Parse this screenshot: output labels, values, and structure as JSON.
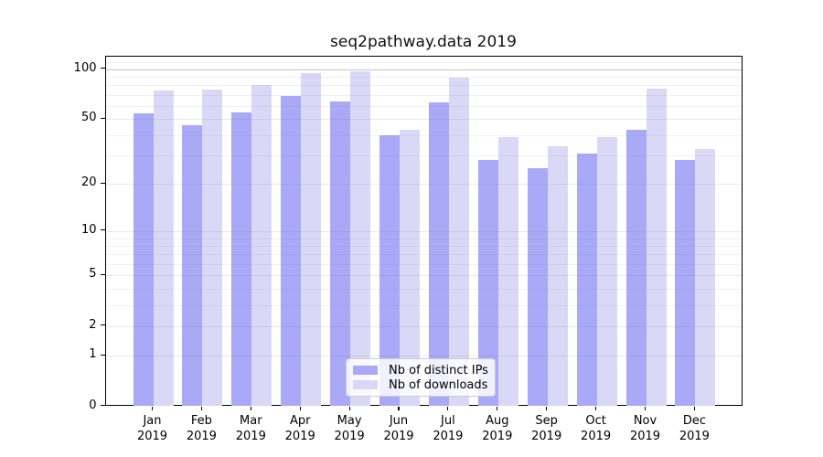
{
  "title": "seq2pathway.data 2019",
  "chart_data": {
    "type": "bar",
    "title": "seq2pathway.data 2019",
    "categories": [
      "Jan",
      "Feb",
      "Mar",
      "Apr",
      "May",
      "Jun",
      "Jul",
      "Aug",
      "Sep",
      "Oct",
      "Nov",
      "Dec"
    ],
    "category_year": "2019",
    "series": [
      {
        "name": "Nb of distinct IPs",
        "color": "#a9a9f7",
        "values": [
          54,
          46,
          55,
          69,
          64,
          40,
          63,
          28,
          25,
          31,
          43,
          28
        ]
      },
      {
        "name": "Nb of downloads",
        "color": "#d9d9f7",
        "values": [
          74,
          75,
          80,
          95,
          97,
          43,
          89,
          39,
          34,
          39,
          76,
          33
        ]
      }
    ],
    "yscale": "log1p",
    "yticks": [
      0,
      1,
      2,
      5,
      10,
      20,
      50,
      100
    ],
    "ylim": [
      0,
      120
    ],
    "xlabel": "",
    "ylabel": "",
    "grid": "horizontal",
    "legend_position": "inside-bottom-center",
    "colors": {
      "axis": "#000000",
      "grid_major": "#9c9c9c",
      "grid_minor": "#d9d9d9"
    }
  }
}
